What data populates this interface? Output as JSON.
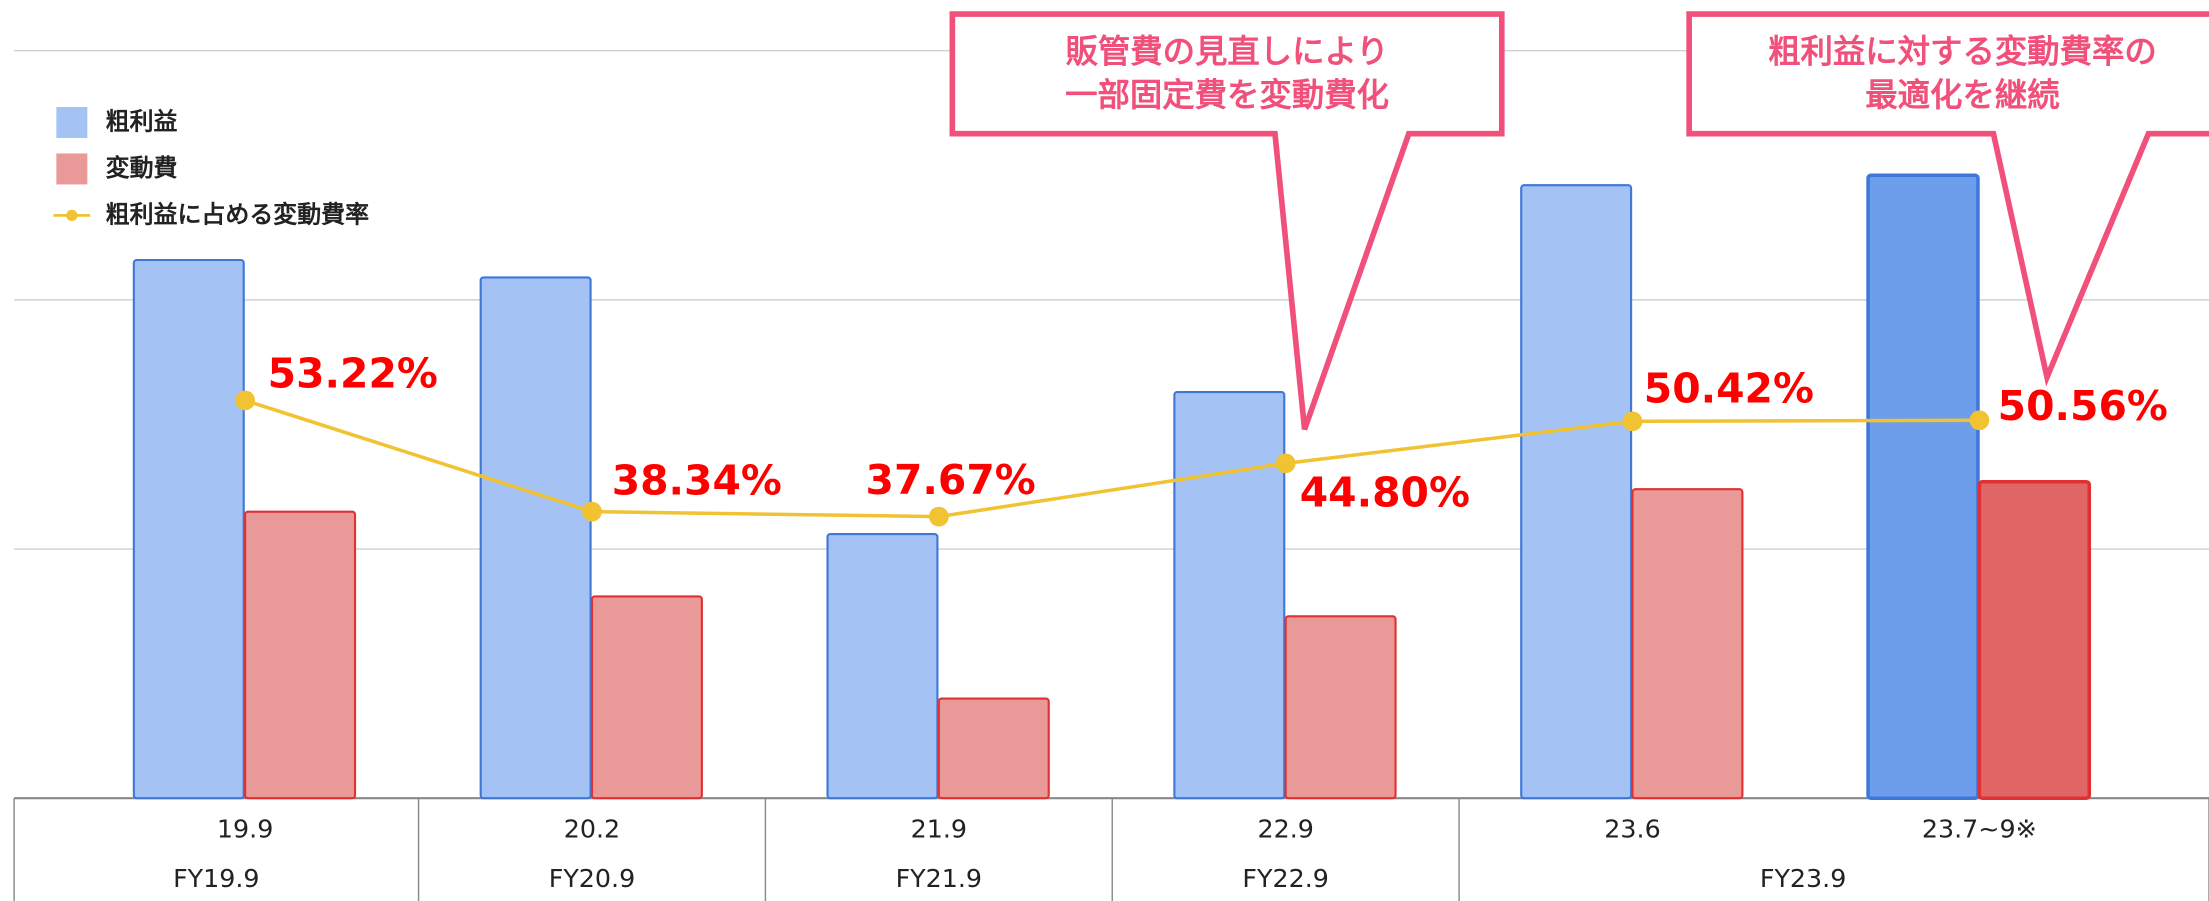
{
  "chart_data": {
    "type": "bar",
    "categories": [
      "19.9",
      "20.2",
      "21.9",
      "22.9",
      "23.6",
      "23.7~9※"
    ],
    "groups": [
      "FY19.9",
      "FY20.9",
      "FY21.9",
      "FY22.9",
      "FY23.9",
      null
    ],
    "series": [
      {
        "name": "粗利益",
        "type": "bar",
        "color": "#a4c2f4",
        "edge": "#3d78d8",
        "colors": [
          "#a4c2f4",
          "#a4c2f4",
          "#a4c2f4",
          "#a4c2f4",
          "#a4c2f4",
          "#6d9eeb"
        ],
        "values": [
          2.16,
          2.09,
          1.06,
          1.63,
          2.46,
          2.5
        ]
      },
      {
        "name": "変動費",
        "type": "bar",
        "color": "#ea9999",
        "edge": "#e03030",
        "colors": [
          "#ea9999",
          "#ea9999",
          "#ea9999",
          "#ea9999",
          "#ea9999",
          "#e06666"
        ],
        "values": [
          1.15,
          0.81,
          0.4,
          0.73,
          1.24,
          1.27
        ]
      },
      {
        "name": "粗利益に占める変動費率",
        "type": "line",
        "axis": "y2",
        "color": "#f1c232",
        "values": [
          53.22,
          38.34,
          37.67,
          44.8,
          50.42,
          50.56
        ],
        "value_labels": [
          "53.22%",
          "38.34%",
          "37.67%",
          "44.80%",
          "50.42%",
          "50.56%"
        ]
      }
    ],
    "ylim": [
      0,
      3
    ],
    "yticks": [
      0,
      1,
      2,
      3
    ],
    "y2lim": [
      0,
      100
    ],
    "grid": true,
    "legend": "top-left",
    "annotations": [
      {
        "lines": [
          "販管費の見直しにより",
          "一部固定費を変動費化"
        ]
      },
      {
        "lines": [
          "粗利益に対する変動費率の",
          "最適化を継続"
        ]
      }
    ]
  }
}
